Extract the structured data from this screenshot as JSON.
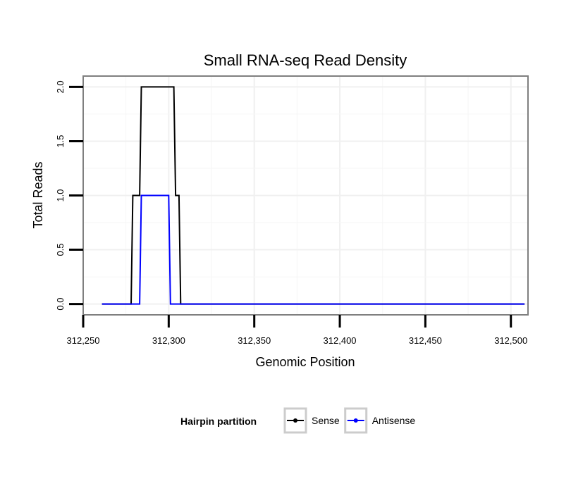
{
  "chart_data": {
    "type": "line",
    "title": "Small RNA-seq Read Density",
    "xlabel": "Genomic Position",
    "ylabel": "Total Reads",
    "xlim": [
      312250,
      312510
    ],
    "ylim": [
      -0.1,
      2.1
    ],
    "x_ticks": [
      312250,
      312300,
      312350,
      312400,
      312450,
      312500
    ],
    "x_tick_labels": [
      "312,250",
      "312,300",
      "312,350",
      "312,400",
      "312,450",
      "312,500"
    ],
    "y_ticks": [
      0,
      0.5,
      1,
      1.5,
      2
    ],
    "y_tick_labels": [
      "0.0",
      "0.5",
      "1.0",
      "1.5",
      "2.0"
    ],
    "grid": true,
    "legend_title": "Hairpin partition",
    "legend_position": "bottom",
    "series": [
      {
        "name": "Sense",
        "color": "#000000",
        "x": [
          312261,
          312278,
          312279,
          312283,
          312284,
          312303,
          312304,
          312306,
          312307,
          312508
        ],
        "y": [
          0,
          0,
          1,
          1,
          2,
          2,
          1,
          1,
          0,
          0
        ]
      },
      {
        "name": "Antisense",
        "color": "#0000ff",
        "x": [
          312261,
          312283,
          312284,
          312300,
          312301,
          312508
        ],
        "y": [
          0,
          0,
          1,
          1,
          0,
          0
        ]
      }
    ]
  }
}
